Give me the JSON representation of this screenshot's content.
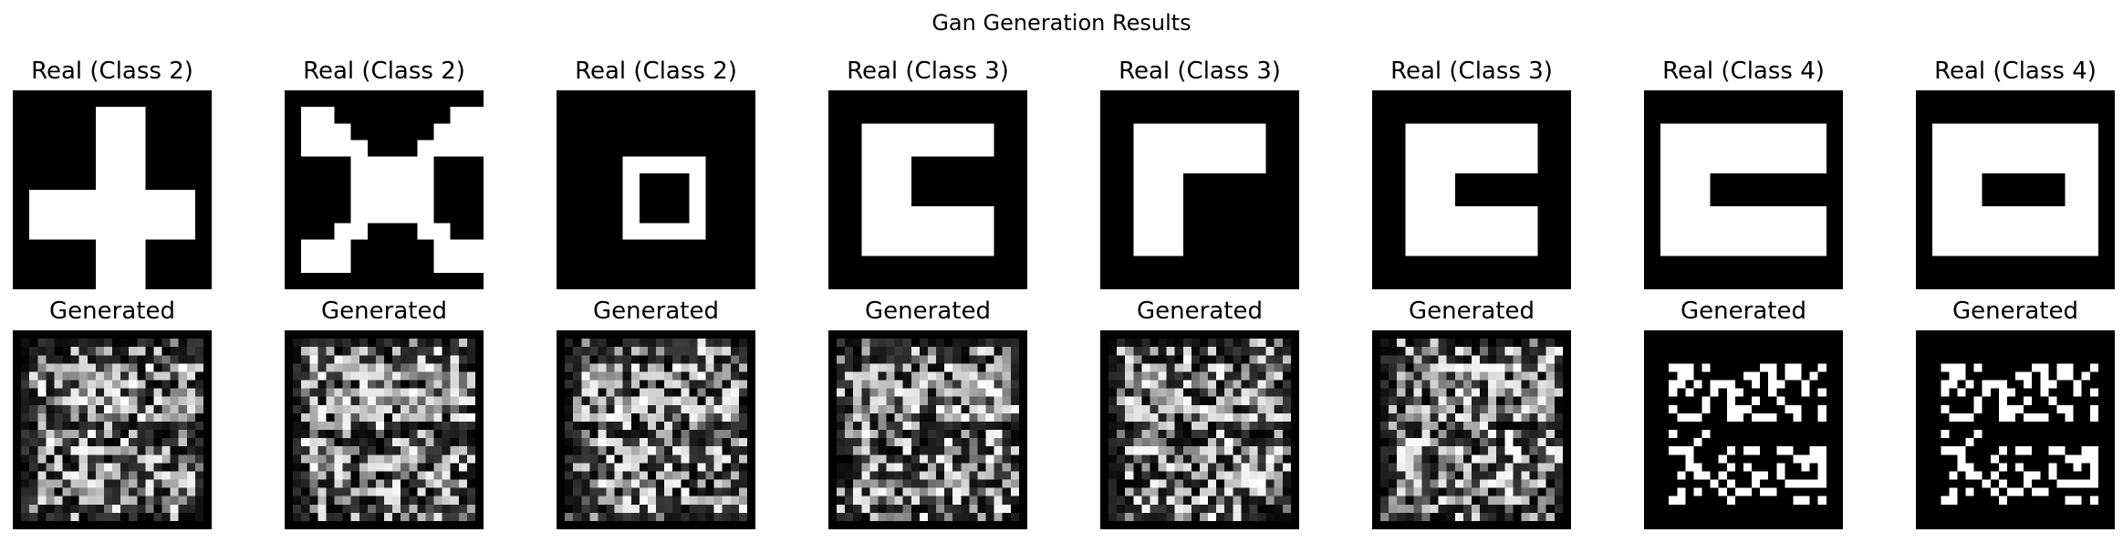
{
  "figure": {
    "title": "Gan Generation Results"
  },
  "panels": [
    {
      "title": "Real (Class 2)",
      "kind": "real",
      "grid": 12,
      "rects": [
        [
          1,
          6,
          10,
          3
        ],
        [
          5,
          1,
          3,
          11
        ]
      ]
    },
    {
      "title": "Real (Class 2)",
      "kind": "real",
      "grid": 12,
      "rects": [
        [
          1,
          1,
          2,
          3
        ],
        [
          3,
          2,
          1,
          2
        ],
        [
          1,
          9,
          2,
          2
        ],
        [
          3,
          8,
          1,
          3
        ],
        [
          10,
          1,
          2,
          3
        ],
        [
          9,
          2,
          1,
          2
        ],
        [
          10,
          9,
          2,
          2
        ],
        [
          9,
          8,
          1,
          3
        ],
        [
          4,
          3,
          1,
          6
        ],
        [
          8,
          3,
          1,
          6
        ],
        [
          5,
          4,
          3,
          4
        ]
      ]
    },
    {
      "title": "Real (Class 2)",
      "kind": "real",
      "grid": 12,
      "rects": [
        [
          4,
          4,
          5,
          1
        ],
        [
          4,
          8,
          5,
          1
        ],
        [
          4,
          5,
          1,
          3
        ],
        [
          8,
          5,
          1,
          3
        ]
      ]
    },
    {
      "title": "Real (Class 3)",
      "kind": "real",
      "grid": 12,
      "rects": [
        [
          2,
          2,
          8,
          2
        ],
        [
          2,
          4,
          3,
          3
        ],
        [
          2,
          7,
          8,
          3
        ]
      ]
    },
    {
      "title": "Real (Class 3)",
      "kind": "real",
      "grid": 12,
      "rects": [
        [
          2,
          2,
          8,
          3
        ],
        [
          2,
          5,
          3,
          5
        ]
      ]
    },
    {
      "title": "Real (Class 3)",
      "kind": "real",
      "grid": 12,
      "rects": [
        [
          2,
          2,
          8,
          3
        ],
        [
          2,
          5,
          3,
          2
        ],
        [
          2,
          7,
          8,
          3
        ]
      ]
    },
    {
      "title": "Real (Class 4)",
      "kind": "real",
      "grid": 12,
      "rects": [
        [
          1,
          2,
          10,
          3
        ],
        [
          1,
          5,
          3,
          2
        ],
        [
          1,
          7,
          10,
          3
        ]
      ]
    },
    {
      "title": "Real (Class 4)",
      "kind": "real",
      "grid": 12,
      "rects": [
        [
          1,
          2,
          10,
          3
        ],
        [
          1,
          5,
          3,
          2
        ],
        [
          9,
          5,
          2,
          2
        ],
        [
          1,
          7,
          10,
          3
        ]
      ]
    },
    {
      "title": "Generated",
      "kind": "generated",
      "grid": 24,
      "seed": 11,
      "style": "noisy"
    },
    {
      "title": "Generated",
      "kind": "generated",
      "grid": 24,
      "seed": 23,
      "style": "noisy"
    },
    {
      "title": "Generated",
      "kind": "generated",
      "grid": 24,
      "seed": 37,
      "style": "noisy"
    },
    {
      "title": "Generated",
      "kind": "generated",
      "grid": 24,
      "seed": 41,
      "style": "noisy"
    },
    {
      "title": "Generated",
      "kind": "generated",
      "grid": 24,
      "seed": 53,
      "style": "noisy"
    },
    {
      "title": "Generated",
      "kind": "generated",
      "grid": 24,
      "seed": 67,
      "style": "noisy"
    },
    {
      "title": "Generated",
      "kind": "generated",
      "grid": 24,
      "seed": 79,
      "style": "binary"
    },
    {
      "title": "Generated",
      "kind": "generated",
      "grid": 24,
      "seed": 79,
      "style": "binary"
    }
  ],
  "colors": {
    "background": "#000000",
    "foreground": "#ffffff"
  }
}
